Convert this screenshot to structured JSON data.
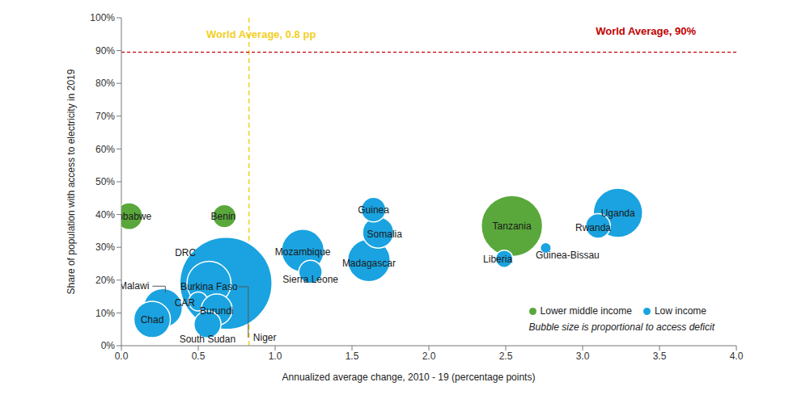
{
  "chart_data": {
    "type": "scatter",
    "x_label": "Annualized average change, 2010 - 19 (percentage points)",
    "y_label": "Share of population with access to electricity in 2019",
    "xlim": [
      0,
      4
    ],
    "xticks": [
      {
        "value": 0,
        "label": "0.0"
      },
      {
        "value": 0.5,
        "label": "0.5"
      },
      {
        "value": 1,
        "label": "1.0"
      },
      {
        "value": 1.5,
        "label": "1.5"
      },
      {
        "value": 2,
        "label": "2.0"
      },
      {
        "value": 2.5,
        "label": "2.5"
      },
      {
        "value": 3,
        "label": "3.0"
      },
      {
        "value": 3.5,
        "label": "3.5"
      },
      {
        "value": 4,
        "label": "4.0"
      }
    ],
    "ylim": [
      0,
      100
    ],
    "yticks": [
      {
        "value": 0,
        "label": "0%"
      },
      {
        "value": 10,
        "label": "10%"
      },
      {
        "value": 20,
        "label": "20%"
      },
      {
        "value": 30,
        "label": "30%"
      },
      {
        "value": 40,
        "label": "40%"
      },
      {
        "value": 50,
        "label": "50%"
      },
      {
        "value": 60,
        "label": "60%"
      },
      {
        "value": 70,
        "label": "70%"
      },
      {
        "value": 80,
        "label": "80%"
      },
      {
        "value": 90,
        "label": "90%"
      },
      {
        "value": 100,
        "label": "100%"
      }
    ],
    "grid": false,
    "legend": "lower right",
    "bubble_note": "Bubble size is proportional to access deficit",
    "reference_lines": [
      {
        "axis": "x",
        "value": 0.83,
        "label": "World Average, 0.8 pp",
        "color": "#f2cf1d"
      },
      {
        "axis": "y",
        "value": 89.5,
        "label": "World Average, 90%",
        "color": "#c00000"
      }
    ],
    "series": [
      {
        "name": "Lower middle income",
        "color": "#5aa83c",
        "labels": [
          "Zimbabwe",
          "Benin",
          "Tanzania"
        ],
        "x": [
          0.05,
          0.67,
          2.54
        ],
        "y": [
          39.5,
          39.5,
          36.5
        ],
        "access_deficit": [
          6,
          4.5,
          31
        ]
      },
      {
        "name": "Low income",
        "color": "#1aa3e0",
        "labels": [
          "Niger",
          "DRC",
          "Malawi",
          "Chad",
          "Burkina Faso",
          "CAR",
          "Burundi",
          "South Sudan",
          "Mozambique",
          "Sierra Leone",
          "Madagascar",
          "Somalia",
          "Guinea",
          "Uganda",
          "Rwanda",
          "Liberia",
          "Guinea-Bissau"
        ],
        "x": [
          0.72,
          0.68,
          0.27,
          0.2,
          0.57,
          0.5,
          0.62,
          0.56,
          1.18,
          1.23,
          1.61,
          1.67,
          1.64,
          3.23,
          3.1,
          2.49,
          2.76
        ],
        "y": [
          18,
          19,
          11.5,
          8,
          19,
          13.5,
          11,
          6.5,
          29,
          22.5,
          26,
          34.5,
          41.5,
          40.5,
          36.5,
          26.5,
          29.8
        ],
        "access_deficit": [
          20,
          70,
          12.5,
          11,
          16,
          3,
          8,
          6,
          15,
          4.5,
          15,
          8,
          5,
          20,
          5,
          2.5,
          1
        ]
      }
    ]
  }
}
